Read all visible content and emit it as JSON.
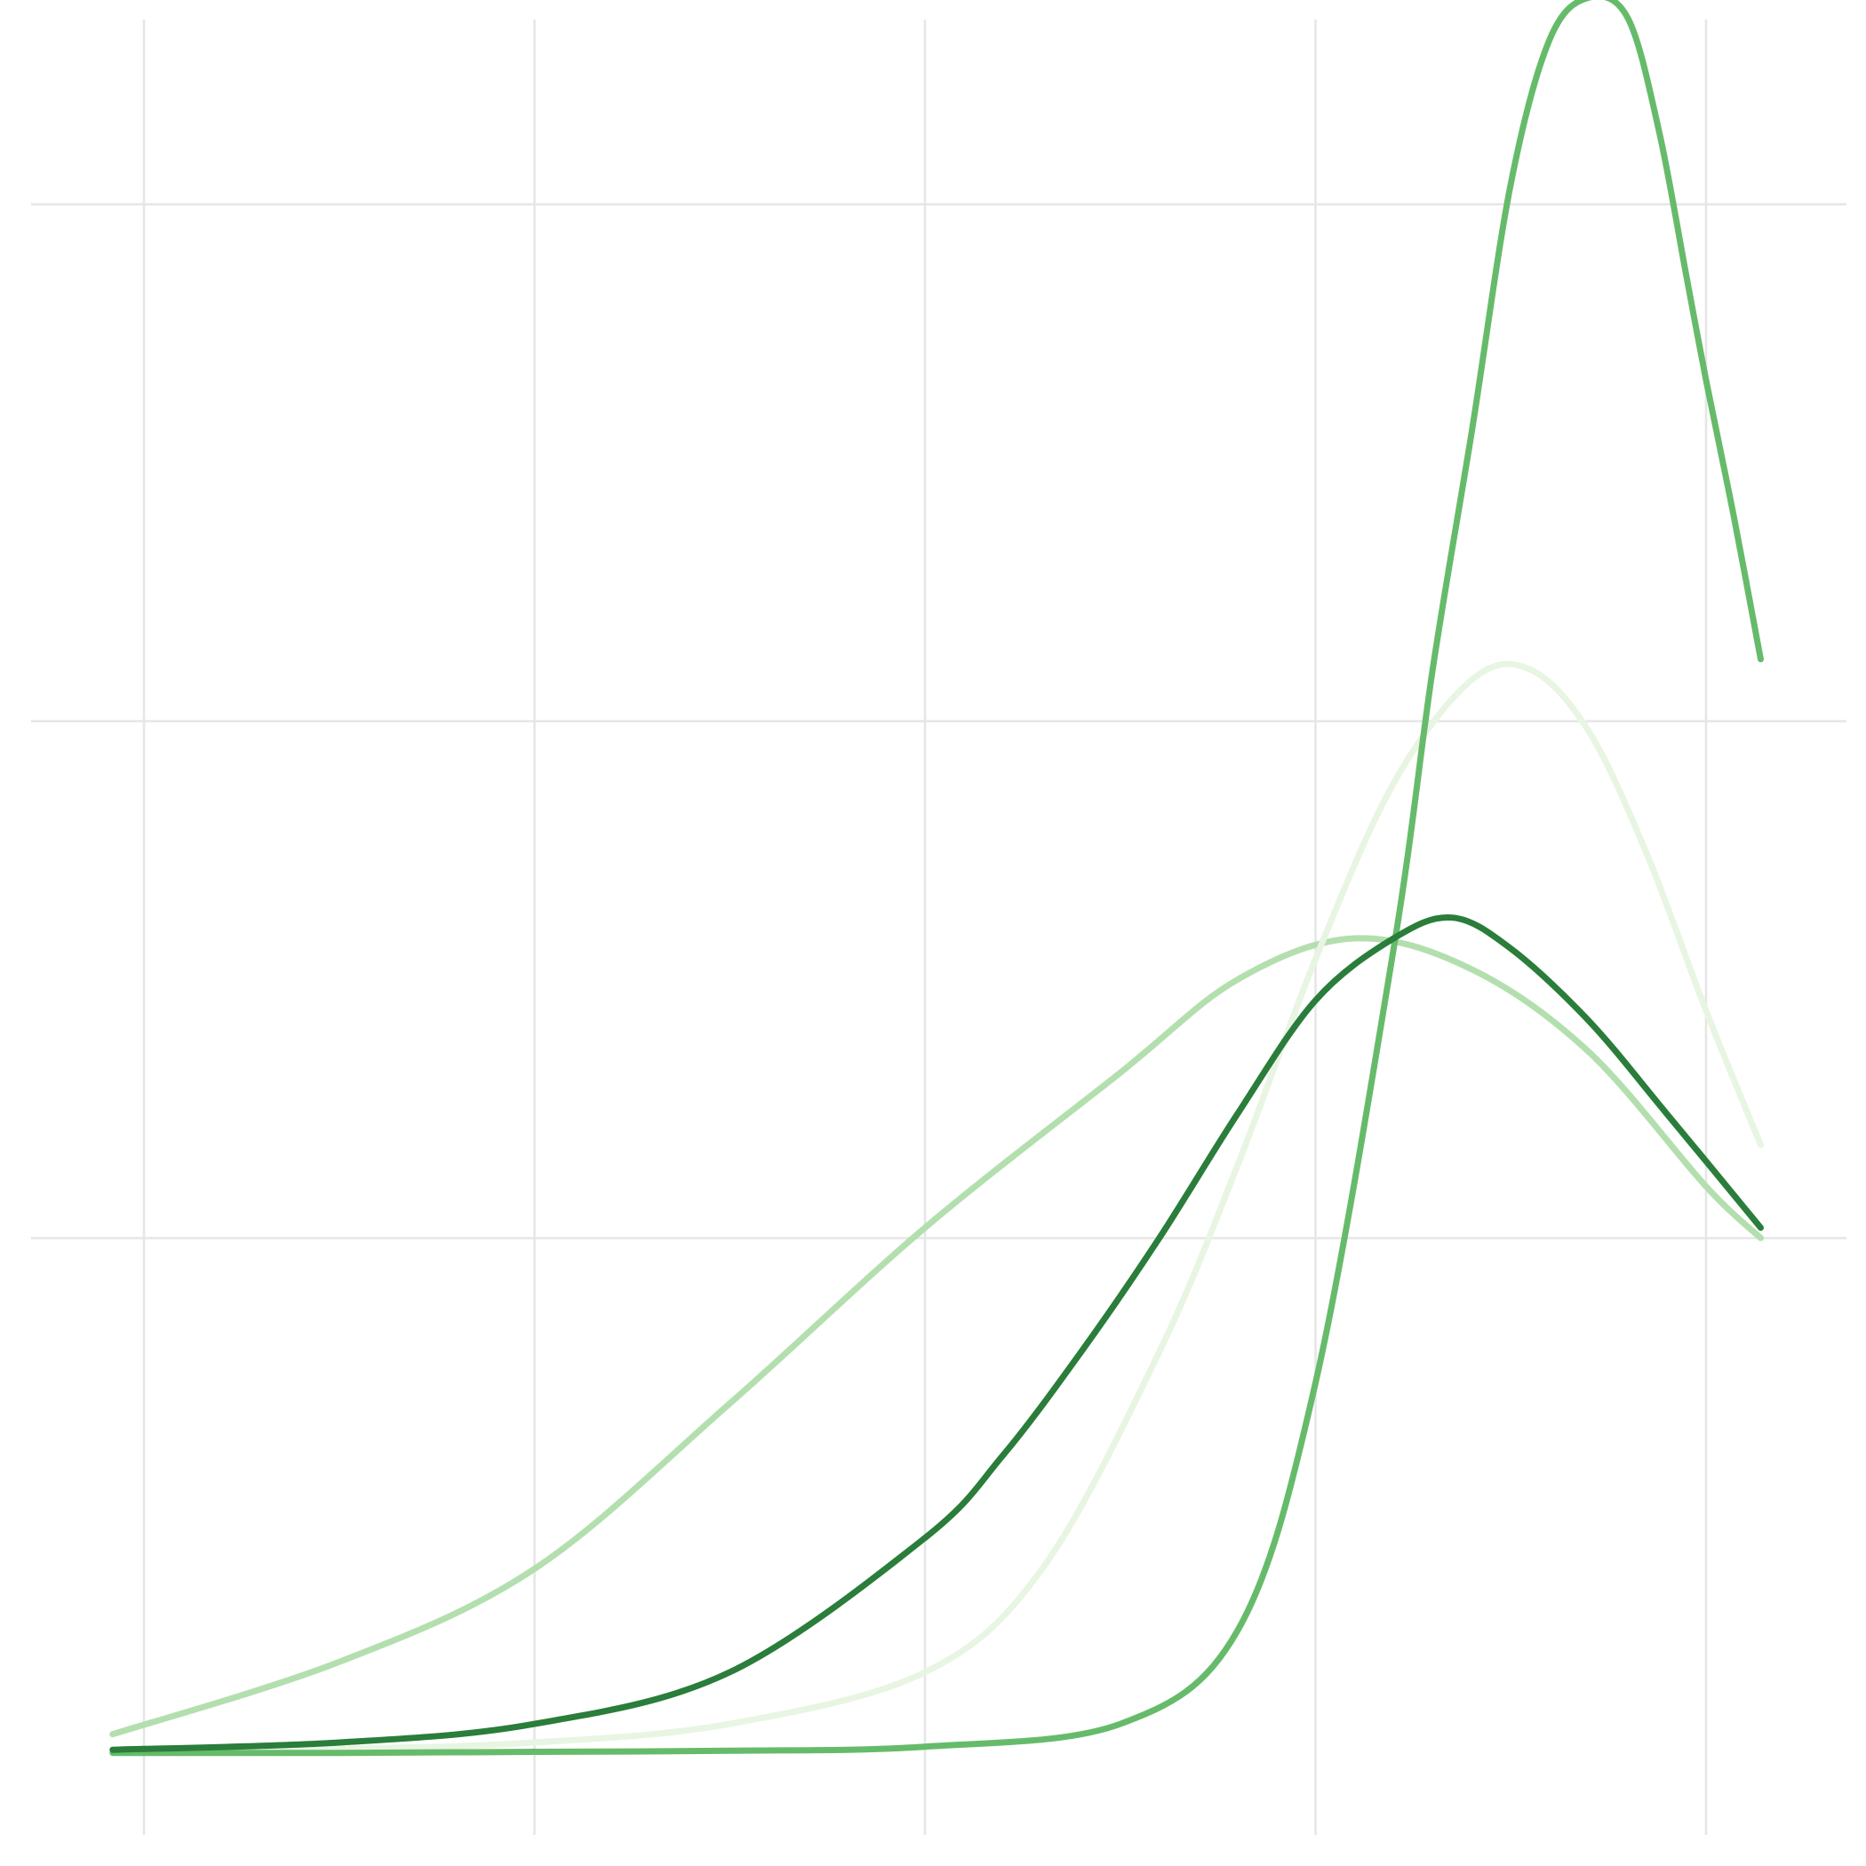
{
  "chart_data": {
    "type": "line",
    "title": "",
    "xlabel": "",
    "ylabel": "",
    "grid": true,
    "legend": "none",
    "xlim": [
      0,
      4
    ],
    "ylim": [
      0,
      1.8
    ],
    "x_gridlines": [
      0.0,
      1.0,
      2.0,
      3.0,
      4.0
    ],
    "y_gridlines": [
      0.5,
      1.0,
      1.5
    ],
    "series": [
      {
        "color": "#b3dfae",
        "x": [
          -0.08,
          0.5,
          1.0,
          1.5,
          2.0,
          2.5,
          2.8,
          3.1,
          3.4,
          3.7,
          4.0,
          4.14
        ],
        "y": [
          0.02,
          0.09,
          0.18,
          0.34,
          0.51,
          0.66,
          0.75,
          0.79,
          0.76,
          0.68,
          0.55,
          0.5
        ]
      },
      {
        "color": "#e8f5e3",
        "x": [
          -0.08,
          0.5,
          1.0,
          1.5,
          2.0,
          2.3,
          2.6,
          2.8,
          3.0,
          3.2,
          3.4,
          3.55,
          3.7,
          3.85,
          4.0,
          4.14
        ],
        "y": [
          0.005,
          0.006,
          0.012,
          0.03,
          0.08,
          0.18,
          0.39,
          0.57,
          0.77,
          0.94,
          1.04,
          1.05,
          0.99,
          0.87,
          0.72,
          0.59
        ]
      },
      {
        "color": "#66bb6a",
        "x": [
          -0.08,
          0.5,
          1.0,
          1.5,
          2.0,
          2.5,
          2.8,
          3.0,
          3.2,
          3.3,
          3.4,
          3.5,
          3.6,
          3.7,
          3.8,
          3.88,
          3.95,
          4.0,
          4.07,
          4.14
        ],
        "y": [
          0.002,
          0.002,
          0.003,
          0.004,
          0.008,
          0.03,
          0.12,
          0.36,
          0.78,
          1.05,
          1.28,
          1.52,
          1.66,
          1.7,
          1.68,
          1.57,
          1.43,
          1.33,
          1.2,
          1.06
        ]
      },
      {
        "color": "#2a7d3a",
        "x": [
          -0.08,
          0.5,
          1.0,
          1.5,
          2.0,
          2.2,
          2.4,
          2.6,
          2.8,
          3.0,
          3.2,
          3.35,
          3.5,
          3.7,
          3.9,
          4.14
        ],
        "y": [
          0.005,
          0.012,
          0.03,
          0.08,
          0.21,
          0.29,
          0.39,
          0.5,
          0.62,
          0.73,
          0.79,
          0.81,
          0.78,
          0.71,
          0.62,
          0.51
        ]
      }
    ]
  }
}
